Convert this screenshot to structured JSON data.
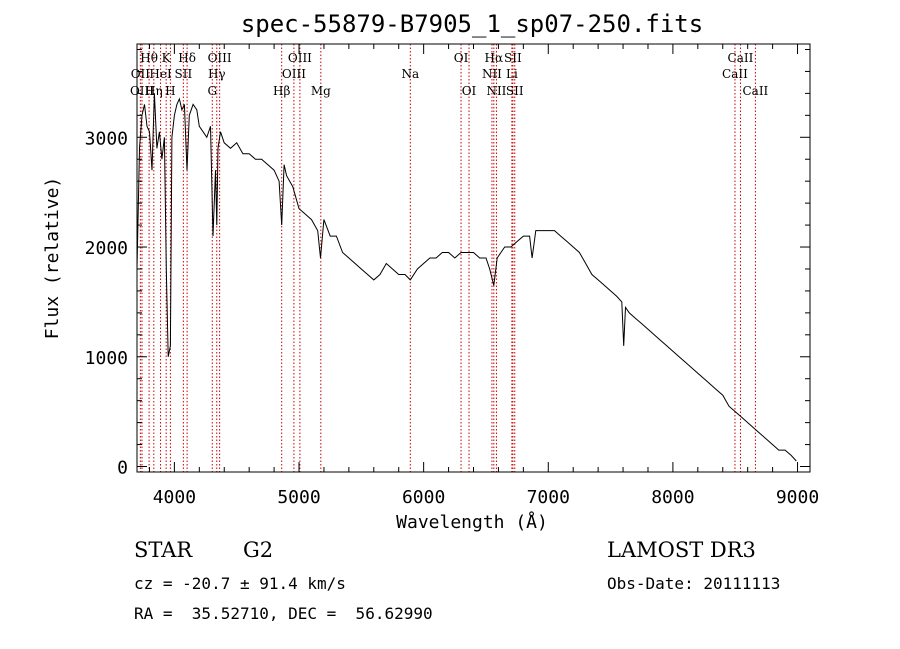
{
  "chart_data": {
    "type": "line",
    "title": "spec-55879-B7905_1_sp07-250.fits",
    "xlabel": "Wavelength (Å)",
    "ylabel": "Flux (relative)",
    "xlim": [
      3700,
      9100
    ],
    "ylim": [
      -50,
      3850
    ],
    "x_ticks": [
      4000,
      5000,
      6000,
      7000,
      8000,
      9000
    ],
    "y_ticks": [
      0,
      1000,
      2000,
      3000
    ],
    "series": [
      {
        "name": "flux",
        "x": [
          3700,
          3720,
          3740,
          3760,
          3780,
          3800,
          3820,
          3840,
          3860,
          3880,
          3900,
          3920,
          3935,
          3950,
          3968,
          3980,
          4000,
          4020,
          4040,
          4060,
          4080,
          4101,
          4120,
          4150,
          4180,
          4200,
          4230,
          4260,
          4290,
          4310,
          4330,
          4340,
          4350,
          4370,
          4400,
          4450,
          4500,
          4550,
          4600,
          4650,
          4700,
          4750,
          4800,
          4840,
          4861,
          4880,
          4900,
          4950,
          5000,
          5050,
          5100,
          5150,
          5172,
          5200,
          5250,
          5300,
          5350,
          5400,
          5450,
          5500,
          5550,
          5600,
          5650,
          5700,
          5750,
          5800,
          5850,
          5893,
          5950,
          6000,
          6050,
          6100,
          6150,
          6200,
          6250,
          6300,
          6350,
          6400,
          6450,
          6500,
          6530,
          6563,
          6590,
          6620,
          6650,
          6700,
          6750,
          6800,
          6850,
          6870,
          6900,
          6950,
          7000,
          7050,
          7100,
          7150,
          7200,
          7250,
          7300,
          7350,
          7400,
          7450,
          7500,
          7550,
          7590,
          7605,
          7620,
          7650,
          7700,
          7750,
          7800,
          7850,
          7900,
          7950,
          8000,
          8050,
          8100,
          8150,
          8200,
          8250,
          8300,
          8350,
          8400,
          8450,
          8500,
          8550,
          8600,
          8650,
          8700,
          8750,
          8800,
          8850,
          8900,
          8950,
          8990
        ],
        "values": [
          1800,
          2900,
          3200,
          3300,
          3100,
          3050,
          2700,
          3400,
          2900,
          3050,
          2800,
          3000,
          1800,
          1000,
          1100,
          3000,
          3200,
          3300,
          3350,
          3250,
          3300,
          2700,
          3200,
          3300,
          3250,
          3100,
          3050,
          3000,
          3100,
          2100,
          2700,
          2200,
          2900,
          3050,
          2950,
          2900,
          2950,
          2850,
          2850,
          2800,
          2800,
          2750,
          2700,
          2600,
          2200,
          2750,
          2650,
          2550,
          2350,
          2300,
          2250,
          2150,
          1900,
          2250,
          2100,
          2100,
          1950,
          1900,
          1850,
          1800,
          1750,
          1700,
          1750,
          1850,
          1800,
          1750,
          1750,
          1700,
          1800,
          1850,
          1900,
          1900,
          1950,
          1950,
          1900,
          1950,
          1950,
          1950,
          1900,
          1900,
          1800,
          1650,
          1900,
          1950,
          2000,
          2000,
          2050,
          2100,
          2100,
          1900,
          2150,
          2150,
          2150,
          2150,
          2100,
          2050,
          2000,
          1950,
          1850,
          1750,
          1700,
          1650,
          1600,
          1550,
          1500,
          1100,
          1450,
          1400,
          1350,
          1300,
          1250,
          1200,
          1150,
          1100,
          1050,
          1000,
          950,
          900,
          850,
          800,
          750,
          700,
          650,
          550,
          500,
          450,
          400,
          350,
          300,
          250,
          200,
          150,
          150,
          100,
          50
        ]
      }
    ],
    "line_color": "#cc0000",
    "lines": [
      {
        "label": "Hθ",
        "wl": 3797,
        "row": 1
      },
      {
        "label": "OII",
        "wl": 3727,
        "row": 2
      },
      {
        "label": "OIII",
        "wl": 3740,
        "row": 3
      },
      {
        "label": "Hη",
        "wl": 3835,
        "row": 3
      },
      {
        "label": "HeI",
        "wl": 3889,
        "row": 2
      },
      {
        "label": "K",
        "wl": 3934,
        "row": 1
      },
      {
        "label": "H",
        "wl": 3968,
        "row": 3
      },
      {
        "label": "SII",
        "wl": 4072,
        "row": 2
      },
      {
        "label": "Hδ",
        "wl": 4102,
        "row": 1
      },
      {
        "label": "OIII",
        "wl": 4363,
        "row": 1
      },
      {
        "label": "Hγ",
        "wl": 4340,
        "row": 2
      },
      {
        "label": "G",
        "wl": 4304,
        "row": 3
      },
      {
        "label": "Hβ",
        "wl": 4861,
        "row": 3
      },
      {
        "label": "OIII",
        "wl": 5007,
        "row": 1
      },
      {
        "label": "OIII",
        "wl": 4959,
        "row": 2
      },
      {
        "label": "Mg",
        "wl": 5175,
        "row": 3
      },
      {
        "label": "Na",
        "wl": 5893,
        "row": 2
      },
      {
        "label": "OI",
        "wl": 6300,
        "row": 1
      },
      {
        "label": "OI",
        "wl": 6364,
        "row": 3
      },
      {
        "label": "Hα",
        "wl": 6563,
        "row": 1
      },
      {
        "label": "NII",
        "wl": 6548,
        "row": 2
      },
      {
        "label": "NII",
        "wl": 6584,
        "row": 3
      },
      {
        "label": "SII",
        "wl": 6716,
        "row": 1
      },
      {
        "label": "Li",
        "wl": 6708,
        "row": 2
      },
      {
        "label": "SII",
        "wl": 6731,
        "row": 3
      },
      {
        "label": "CaII",
        "wl": 8542,
        "row": 1
      },
      {
        "label": "CaII",
        "wl": 8498,
        "row": 2
      },
      {
        "label": "CaII",
        "wl": 8662,
        "row": 3
      }
    ]
  },
  "info": {
    "object_class": "STAR",
    "subclass": "G2",
    "redshift": "cz = -20.7 ± 91.4 km/s",
    "coords": "RA =  35.52710, DEC =  56.62990",
    "survey": "LAMOST DR3",
    "obs_date": "Obs-Date: 20111113"
  }
}
